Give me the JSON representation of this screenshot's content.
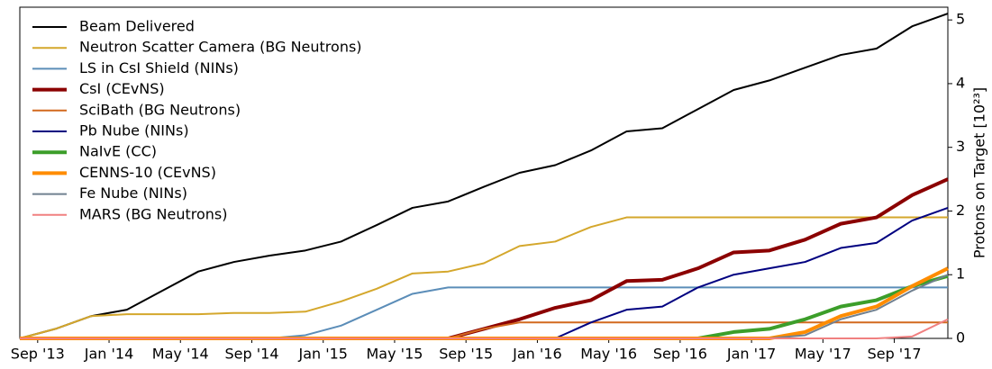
{
  "chart_data": {
    "type": "line",
    "y_label": "Protons on Target [10²³]",
    "x": [
      "2013-08",
      "2013-10",
      "2013-12",
      "2014-02",
      "2014-04",
      "2014-06",
      "2014-08",
      "2014-10",
      "2014-12",
      "2015-02",
      "2015-04",
      "2015-06",
      "2015-08",
      "2015-10",
      "2015-12",
      "2016-02",
      "2016-04",
      "2016-06",
      "2016-08",
      "2016-10",
      "2016-12",
      "2017-02",
      "2017-04",
      "2017-06",
      "2017-08",
      "2017-10",
      "2017-12"
    ],
    "xlim": [
      "2013-08",
      "2017-12"
    ],
    "xticks": [
      {
        "value": "2013-09",
        "label": "Sep '13"
      },
      {
        "value": "2014-01",
        "label": "Jan '14"
      },
      {
        "value": "2014-05",
        "label": "May '14"
      },
      {
        "value": "2014-09",
        "label": "Sep '14"
      },
      {
        "value": "2015-01",
        "label": "Jan '15"
      },
      {
        "value": "2015-05",
        "label": "May '15"
      },
      {
        "value": "2015-09",
        "label": "Sep '15"
      },
      {
        "value": "2016-01",
        "label": "Jan '16"
      },
      {
        "value": "2016-05",
        "label": "May '16"
      },
      {
        "value": "2016-09",
        "label": "Sep '16"
      },
      {
        "value": "2017-01",
        "label": "Jan '17"
      },
      {
        "value": "2017-05",
        "label": "May '17"
      },
      {
        "value": "2017-09",
        "label": "Sep '17"
      }
    ],
    "ylim": [
      0,
      5.2
    ],
    "yticks": [
      0,
      1,
      2,
      3,
      4,
      5
    ],
    "y_axis_side": "right",
    "legend": "upper left",
    "series": [
      {
        "name": "Beam Delivered",
        "color": "#000000",
        "width": 2,
        "values": [
          0,
          0.15,
          0.35,
          0.45,
          0.75,
          1.05,
          1.2,
          1.3,
          1.38,
          1.52,
          1.78,
          2.05,
          2.15,
          2.38,
          2.6,
          2.72,
          2.95,
          3.25,
          3.3,
          3.6,
          3.9,
          4.05,
          4.25,
          4.45,
          4.55,
          4.9,
          5.1
        ]
      },
      {
        "name": "Neutron Scatter Camera (BG Neutrons)",
        "color": "#d4a72c",
        "width": 2,
        "values": [
          0,
          0.15,
          0.35,
          0.38,
          0.38,
          0.38,
          0.4,
          0.4,
          0.42,
          0.58,
          0.78,
          1.02,
          1.05,
          1.18,
          1.45,
          1.52,
          1.75,
          1.9,
          1.9,
          1.9,
          1.9,
          1.9,
          1.9,
          1.9,
          1.9,
          1.9,
          1.9
        ]
      },
      {
        "name": "LS in CsI Shield (NINs)",
        "color": "#5b8db8",
        "width": 2,
        "values": [
          0,
          0,
          0,
          0,
          0,
          0,
          0,
          0,
          0.05,
          0.2,
          0.45,
          0.7,
          0.8,
          0.8,
          0.8,
          0.8,
          0.8,
          0.8,
          0.8,
          0.8,
          0.8,
          0.8,
          0.8,
          0.8,
          0.8,
          0.8,
          0.8
        ]
      },
      {
        "name": "CsI (CEvNS)",
        "color": "#8b0000",
        "width": 4,
        "values": [
          0,
          0,
          0,
          0,
          0,
          0,
          0,
          0,
          0,
          0,
          0,
          0,
          0,
          0.15,
          0.3,
          0.48,
          0.6,
          0.9,
          0.92,
          1.1,
          1.35,
          1.38,
          1.55,
          1.8,
          1.9,
          2.25,
          2.5
        ]
      },
      {
        "name": "SciBath (BG Neutrons)",
        "color": "#d2691e",
        "width": 2,
        "values": [
          0,
          0,
          0,
          0,
          0,
          0,
          0,
          0,
          0,
          0,
          0,
          0,
          0,
          0.15,
          0.25,
          0.25,
          0.25,
          0.25,
          0.25,
          0.25,
          0.25,
          0.25,
          0.25,
          0.25,
          0.25,
          0.25,
          0.25
        ]
      },
      {
        "name": "Pb Nube (NINs)",
        "color": "#000080",
        "width": 2,
        "values": [
          0,
          0,
          0,
          0,
          0,
          0,
          0,
          0,
          0,
          0,
          0,
          0,
          0,
          0,
          0,
          0,
          0.25,
          0.45,
          0.5,
          0.8,
          1.0,
          1.1,
          1.2,
          1.42,
          1.5,
          1.85,
          2.05
        ]
      },
      {
        "name": "NaIvE (CC)",
        "color": "#3c9e2a",
        "width": 4,
        "values": [
          0,
          0,
          0,
          0,
          0,
          0,
          0,
          0,
          0,
          0,
          0,
          0,
          0,
          0,
          0,
          0,
          0,
          0,
          0,
          0,
          0.1,
          0.15,
          0.3,
          0.5,
          0.6,
          0.82,
          0.98
        ]
      },
      {
        "name": "CENNS-10 (CEvNS)",
        "color": "#ff8c00",
        "width": 4,
        "values": [
          0,
          0,
          0,
          0,
          0,
          0,
          0,
          0,
          0,
          0,
          0,
          0,
          0,
          0,
          0,
          0,
          0,
          0,
          0,
          0,
          0,
          0,
          0.1,
          0.35,
          0.5,
          0.82,
          1.1
        ]
      },
      {
        "name": "Fe Nube (NINs)",
        "color": "#708090",
        "width": 2,
        "values": [
          0,
          0,
          0,
          0,
          0,
          0,
          0,
          0,
          0,
          0,
          0,
          0,
          0,
          0,
          0,
          0,
          0,
          0,
          0,
          0,
          0,
          0,
          0.05,
          0.3,
          0.45,
          0.75,
          1.0
        ]
      },
      {
        "name": "MARS (BG Neutrons)",
        "color": "#f08080",
        "width": 2,
        "values": [
          0,
          0,
          0,
          0,
          0,
          0,
          0,
          0,
          0,
          0,
          0,
          0,
          0,
          0,
          0,
          0,
          0,
          0,
          0,
          0,
          0,
          0,
          0,
          0,
          0,
          0.03,
          0.3
        ]
      }
    ]
  }
}
